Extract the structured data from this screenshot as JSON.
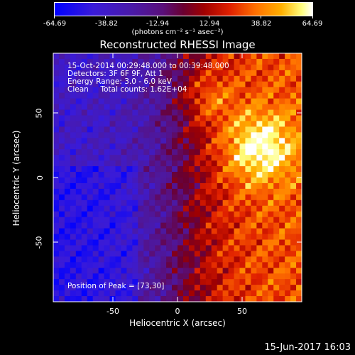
{
  "colorbar": {
    "ticks": [
      "-64.69",
      "-38.82",
      "-12.94",
      "12.94",
      "38.82",
      "64.69"
    ],
    "min": -64.69,
    "max": 64.69,
    "unit_label": "(photons cm⁻² s⁻¹ asec⁻²)"
  },
  "title": "Reconstructed RHESSI Image",
  "annotations": {
    "time": "15-Oct-2014 00:29:48.000 to 00:39:48.000",
    "detectors": "Detectors: 3F 6F 9F, Att 1",
    "energy": "Energy Range: 3.0 - 6.0 keV",
    "method": "Clean     Total counts: 1.62E+04",
    "peak": "Position of Peak = [73,30]"
  },
  "footer_date": "15-Jun-2017 16:03",
  "chart_data": {
    "type": "heatmap",
    "title": "Reconstructed RHESSI Image",
    "xlabel": "Heliocentric X (arcsec)",
    "ylabel": "Heliocentric Y (arcsec)",
    "xlim": [
      -96,
      96
    ],
    "ylim": [
      -96,
      96
    ],
    "x_ticks": [
      "-50",
      "0",
      "50"
    ],
    "y_ticks": [
      "50",
      "0",
      "-50"
    ],
    "x_tick_values": [
      -50,
      0,
      50
    ],
    "y_tick_values": [
      50,
      0,
      -50
    ],
    "peak_position": [
      73,
      30
    ],
    "colormap": "blue-purple-red-orange-yellow-white",
    "value_range": [
      -64.69,
      64.69
    ]
  }
}
